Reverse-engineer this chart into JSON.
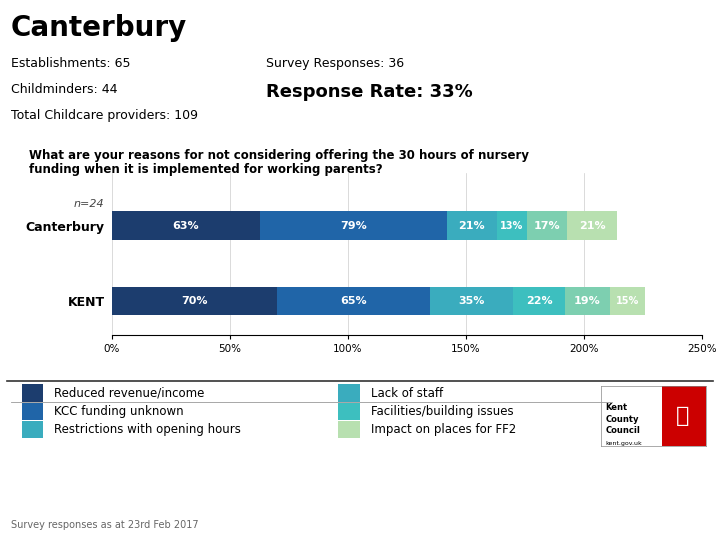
{
  "title": "Canterbury",
  "stats_left": [
    "Establishments: 65",
    "Childminders: 44",
    "Total Childcare providers: 109"
  ],
  "stats_right_line1": "Survey Responses: 36",
  "stats_right_line2": "Response Rate: 33%",
  "question": "What are your reasons for not considering offering the 30 hours of nursery\nfunding when it is implemented for working parents?",
  "canterbury_label": "Canterbury",
  "kent_label": "KENT",
  "n_label": "n=24",
  "canterbury_values": [
    63,
    79,
    21,
    13,
    17,
    21
  ],
  "kent_values": [
    70,
    65,
    35,
    22,
    19,
    15
  ],
  "colors": [
    "#1c3d6e",
    "#2065a8",
    "#3aacbe",
    "#3dbfbf",
    "#7dcfb0",
    "#b8e0b0"
  ],
  "xlim": [
    0,
    250
  ],
  "xticks": [
    0,
    50,
    100,
    150,
    200,
    250
  ],
  "xticklabels": [
    "0%",
    "50%",
    "100%",
    "150%",
    "200%",
    "250%"
  ],
  "legend_colors_left": [
    "#1c3d6e",
    "#2065a8",
    "#3aacbe"
  ],
  "legend_labels_left": [
    "Reduced revenue/income",
    "KCC funding unknown",
    "Restrictions with opening hours"
  ],
  "legend_colors_right": [
    "#3aacbe",
    "#3dbfbf",
    "#b8e0b0"
  ],
  "legend_labels_right": [
    "Lack of staff",
    "Facilities/building issues",
    "Impact on places for FF2"
  ],
  "footer": "Survey responses as at 23rd Feb 2017",
  "bg_color": "#ffffff"
}
